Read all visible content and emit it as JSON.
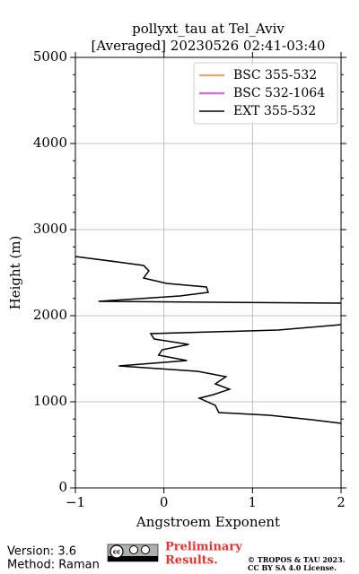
{
  "chart_data": {
    "type": "line",
    "title": [
      "pollyxt_tau at Tel_Aviv",
      "[Averaged] 20230526 02:41-03:40"
    ],
    "xlabel": "Angstroem Exponent",
    "ylabel": "Height (m)",
    "xlim": [
      -1,
      2
    ],
    "xticks": [
      {
        "value": -1,
        "label": "−1"
      },
      0,
      1,
      2
    ],
    "ylim": [
      0,
      5000
    ],
    "yticks": [
      0,
      1000,
      2000,
      3000,
      4000,
      5000
    ],
    "yminorticks": [
      200,
      400,
      600,
      800,
      1200,
      1400,
      1600,
      1800,
      2200,
      2400,
      2600,
      2800,
      3200,
      3400,
      3600,
      3800,
      4200,
      4400,
      4600,
      4800
    ],
    "grid": true,
    "legend": "upper right",
    "series": [
      {
        "name": "BSC 355-532",
        "color": "#ff7f0e",
        "x": [],
        "y": []
      },
      {
        "name": "BSC 532-1064",
        "color": "#e61ee6",
        "x": [],
        "y": []
      },
      {
        "name": "EXT 355-532",
        "color": "#000000",
        "x": [
          2.0,
          1.67,
          1.19,
          0.62,
          0.58,
          0.4,
          0.56,
          0.74,
          0.58,
          0.7,
          0.38,
          -0.51,
          0.26,
          -0.06,
          -0.02,
          0.28,
          -0.11,
          -0.15,
          1.29,
          2.0,
          null,
          2.0,
          -0.74,
          0.18,
          0.5,
          0.48,
          0.03,
          -0.23,
          -0.17,
          -0.23,
          -0.53,
          -1.0
        ],
        "y": [
          750,
          792,
          844,
          875,
          958,
          1042,
          1083,
          1146,
          1208,
          1292,
          1354,
          1417,
          1479,
          1542,
          1604,
          1667,
          1729,
          1792,
          1833,
          1896,
          null,
          2146,
          2167,
          2229,
          2271,
          2333,
          2375,
          2438,
          2521,
          2583,
          2625,
          2688
        ]
      }
    ]
  },
  "footer": {
    "version": "Version: 3.6",
    "method": "Method: Raman",
    "preliminary": [
      "Preliminary",
      "Results."
    ],
    "copyright": [
      "© TROPOS & TAU 2023.",
      "CC BY SA 4.0 License."
    ]
  }
}
